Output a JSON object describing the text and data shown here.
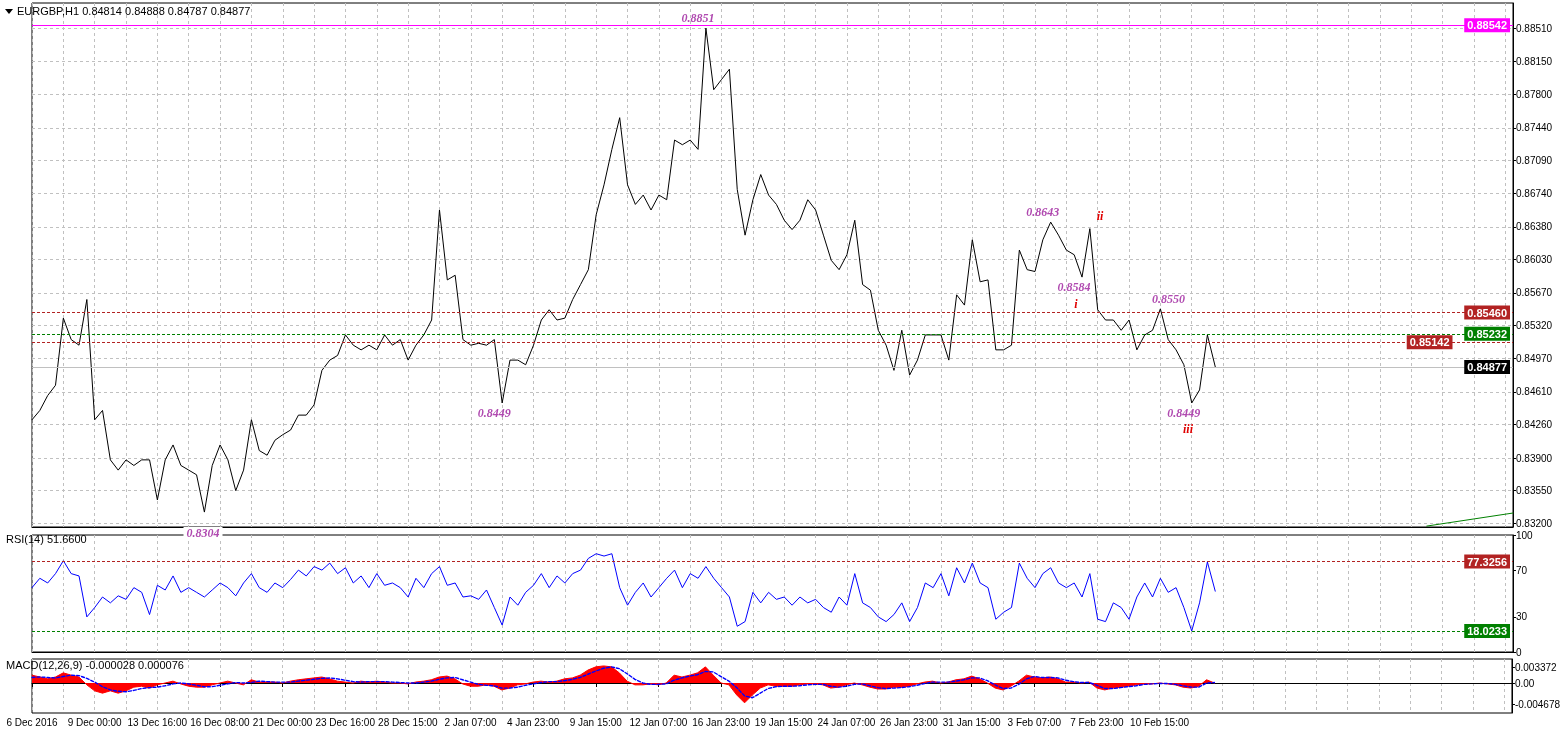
{
  "chart_data": [
    {
      "type": "line",
      "title": "EURGBP,H1 0.84814 0.84888 0.84787 0.84877",
      "categories": [
        "6 Dec 2016",
        null,
        null,
        null,
        null,
        null,
        null,
        null,
        "9 Dec 00:00",
        null,
        null,
        null,
        null,
        null,
        null,
        null,
        "13 Dec 16:00",
        null,
        null,
        null,
        null,
        null,
        null,
        null,
        "16 Dec 08:00",
        null,
        null,
        null,
        null,
        null,
        null,
        null,
        "21 Dec 00:00",
        null,
        null,
        null,
        null,
        null,
        null,
        null,
        "23 Dec 16:00",
        null,
        null,
        null,
        null,
        null,
        null,
        null,
        "28 Dec 15:00",
        null,
        null,
        null,
        null,
        null,
        null,
        null,
        "2 Jan 07:00",
        null,
        null,
        null,
        null,
        null,
        null,
        null,
        "4 Jan 23:00",
        null,
        null,
        null,
        null,
        null,
        null,
        null,
        "9 Jan 15:00",
        null,
        null,
        null,
        null,
        null,
        null,
        null,
        "12 Jan 07:00",
        null,
        null,
        null,
        null,
        null,
        null,
        null,
        "16 Jan 23:00",
        null,
        null,
        null,
        null,
        null,
        null,
        null,
        "19 Jan 15:00",
        null,
        null,
        null,
        null,
        null,
        null,
        null,
        "24 Jan 07:00",
        null,
        null,
        null,
        null,
        null,
        null,
        null,
        "26 Jan 23:00",
        null,
        null,
        null,
        null,
        null,
        null,
        null,
        "31 Jan 15:00",
        null,
        null,
        null,
        null,
        null,
        null,
        null,
        "3 Feb 07:00",
        null,
        null,
        null,
        null,
        null,
        null,
        null,
        "7 Feb 23:00",
        null,
        null,
        null,
        null,
        null,
        null,
        null,
        "10 Feb 15:00",
        null,
        null,
        null,
        null,
        null,
        null,
        null,
        null,
        null,
        null,
        null,
        null,
        null,
        null,
        null,
        null,
        null,
        null,
        null,
        null,
        null,
        null,
        null,
        null,
        null,
        null,
        null,
        null,
        null,
        null,
        null,
        null,
        null,
        null,
        null,
        null,
        null,
        null,
        null,
        null,
        null,
        null,
        null,
        null,
        null
      ],
      "series": [
        {
          "color": "#000000",
          "values": [
            0.8431,
            0.8441,
            0.8457,
            0.8468,
            0.854,
            0.8517,
            0.8511,
            0.856,
            0.8431,
            0.8441,
            0.8388,
            0.8377,
            0.8388,
            0.8382,
            0.8388,
            0.8388,
            0.8345,
            0.8388,
            0.8404,
            0.8382,
            0.8377,
            0.8372,
            0.8332,
            0.8382,
            0.8404,
            0.8388,
            0.8355,
            0.8377,
            0.8431,
            0.8398,
            0.8393,
            0.8409,
            0.8415,
            0.842,
            0.8436,
            0.8436,
            0.8447,
            0.8484,
            0.8495,
            0.85,
            0.8522,
            0.8511,
            0.8506,
            0.8511,
            0.8506,
            0.8522,
            0.8511,
            0.8517,
            0.8495,
            0.8511,
            0.8522,
            0.8538,
            0.8656,
            0.8581,
            0.8586,
            0.8517,
            0.8511,
            0.8513,
            0.8511,
            0.8517,
            0.8449,
            0.8495,
            0.8495,
            0.849,
            0.8511,
            0.8538,
            0.8549,
            0.8538,
            0.854,
            0.856,
            0.8576,
            0.8592,
            0.8651,
            0.8683,
            0.8721,
            0.8755,
            0.8683,
            0.8662,
            0.8672,
            0.8656,
            0.8672,
            0.8667,
            0.8731,
            0.8726,
            0.8731,
            0.8721,
            0.8851,
            0.8785,
            0.8796,
            0.8807,
            0.8678,
            0.8629,
            0.8667,
            0.8694,
            0.8672,
            0.8662,
            0.8645,
            0.8635,
            0.8645,
            0.8667,
            0.8656,
            0.8629,
            0.8602,
            0.8592,
            0.8608,
            0.8645,
            0.8576,
            0.857,
            0.8527,
            0.8511,
            0.8484,
            0.8527,
            0.8479,
            0.8495,
            0.8522,
            0.8522,
            0.8522,
            0.8495,
            0.8565,
            0.8554,
            0.8624,
            0.8579,
            0.8581,
            0.8506,
            0.8506,
            0.8511,
            0.8613,
            0.8592,
            0.859,
            0.8624,
            0.8643,
            0.8629,
            0.8613,
            0.8608,
            0.8584,
            0.8636,
            0.8549,
            0.8538,
            0.8538,
            0.8527,
            0.8538,
            0.8506,
            0.8522,
            0.8527,
            0.855,
            0.8517,
            0.8506,
            0.849,
            0.8449,
            0.8463,
            0.8522,
            0.8488,
            null,
            null,
            null,
            null,
            null,
            null,
            null,
            null,
            null,
            null,
            null,
            null,
            null,
            null,
            null,
            null,
            null,
            null,
            null,
            null,
            null,
            null,
            null,
            null,
            null,
            null,
            null,
            null,
            null,
            null,
            null,
            null,
            null,
            null,
            null,
            null,
            null,
            null
          ],
          "value_labels": [
            null,
            null,
            null,
            null,
            null,
            null,
            null,
            null,
            null,
            null,
            null,
            null,
            null,
            null,
            null,
            null,
            null,
            null,
            null,
            null,
            null,
            null,
            null,
            null,
            null,
            null,
            null,
            null,
            null,
            null,
            null,
            null,
            null,
            null,
            null,
            null,
            null,
            null,
            null,
            null,
            null,
            null,
            null,
            null,
            null,
            null,
            null,
            null,
            null,
            null,
            null,
            null,
            null,
            null,
            null,
            null,
            null,
            null,
            null,
            null,
            "0.8449",
            null,
            null,
            null,
            null,
            null,
            null,
            null,
            null,
            null,
            null,
            null,
            null,
            null,
            null,
            null,
            null,
            null,
            null,
            null,
            null,
            null,
            null,
            null,
            null,
            null,
            "0.8851",
            null,
            null,
            null,
            null,
            null,
            null,
            null,
            null,
            null,
            null,
            null,
            null,
            null,
            null,
            null,
            null,
            null,
            null,
            null,
            null,
            null,
            null,
            null,
            null,
            null,
            null,
            null,
            null,
            null,
            null,
            null,
            null,
            null,
            null,
            null,
            null,
            null,
            null,
            null,
            null,
            null,
            null,
            null,
            "0.8643",
            null,
            null,
            null,
            "0.8584",
            null,
            null,
            null,
            null,
            null,
            null,
            null,
            null,
            null,
            "0.8550",
            null,
            null,
            null,
            "0.8449",
            null,
            null,
            null,
            null,
            null,
            null,
            null,
            null,
            null,
            null,
            null,
            null,
            null,
            null,
            null,
            null,
            null,
            null,
            null,
            null,
            null,
            null,
            null,
            null,
            null,
            null,
            null,
            null,
            null,
            null,
            null,
            null,
            null,
            null,
            null,
            null,
            null,
            null,
            null,
            null,
            null
          ]
        },
        {
          "color": "#008000",
          "values": [
            null,
            null,
            null,
            null,
            null,
            null,
            null,
            null,
            null,
            null,
            null,
            null,
            null,
            null,
            null,
            null,
            null,
            null,
            null,
            null,
            null,
            null,
            null,
            null,
            null,
            null,
            null,
            null,
            null,
            null,
            null,
            null,
            null,
            null,
            null,
            null,
            null,
            null,
            null,
            null,
            null,
            null,
            null,
            null,
            null,
            null,
            null,
            null,
            null,
            null,
            null,
            null,
            null,
            null,
            null,
            null,
            null,
            null,
            null,
            null,
            null,
            null,
            null,
            null,
            null,
            null,
            null,
            null,
            null,
            null,
            null,
            null,
            null,
            null,
            null,
            null,
            null,
            null,
            null,
            null,
            null,
            null,
            null,
            null,
            null,
            null,
            null,
            null,
            null,
            null,
            null,
            null,
            null,
            null,
            null,
            null,
            null,
            null,
            null,
            null,
            null,
            null,
            null,
            null,
            null,
            null,
            null,
            null,
            null,
            null,
            null,
            null,
            null,
            null,
            null,
            null,
            null,
            null,
            null,
            null,
            null,
            null,
            null,
            null,
            null,
            null,
            null,
            null,
            null,
            null,
            null,
            null,
            null,
            null,
            null,
            null,
            null,
            null,
            null,
            null,
            null,
            null,
            null,
            null,
            null,
            null,
            null,
            null,
            null,
            null,
            null,
            null,
            null,
            null,
            null,
            null,
            null,
            null,
            null,
            null,
            null,
            null,
            null,
            null,
            null,
            null,
            null,
            null,
            null,
            null,
            null,
            null,
            null,
            null,
            null,
            null,
            null,
            null,
            0.8317,
            null,
            null,
            null,
            null,
            null,
            null,
            null,
            null,
            null,
            null,
            0.8331
          ]
        }
      ],
      "ylim": [
        0.8316,
        0.8878
      ],
      "yticks": [
        {
          "value": 0.832,
          "label": "0.83200"
        },
        {
          "value": 0.8355,
          "label": "0.83550"
        },
        {
          "value": 0.839,
          "label": "0.83900"
        },
        {
          "value": 0.8426,
          "label": "0.84260"
        },
        {
          "value": 0.8461,
          "label": "0.84610"
        },
        {
          "value": 0.8497,
          "label": "0.84970"
        },
        {
          "value": 0.8532,
          "label": "0.85320"
        },
        {
          "value": 0.8567,
          "label": "0.85670"
        },
        {
          "value": 0.8603,
          "label": "0.86030"
        },
        {
          "value": 0.8638,
          "label": "0.86380"
        },
        {
          "value": 0.8674,
          "label": "0.86740"
        },
        {
          "value": 0.8709,
          "label": "0.87090"
        },
        {
          "value": 0.8744,
          "label": "0.87440"
        },
        {
          "value": 0.878,
          "label": "0.87800"
        },
        {
          "value": 0.8815,
          "label": "0.88150"
        },
        {
          "value": 0.8851,
          "label": "0.88510"
        }
      ],
      "grid": true,
      "tick_labels": "y",
      "ref_lines": [
        {
          "axis": "y",
          "value": 0.88542,
          "label": "0.88542",
          "color": "#ff00ff",
          "line_style": "solid"
        },
        {
          "axis": "y",
          "value": 0.8546,
          "label": "0.85460",
          "color": "#b22222",
          "line_style": "dashed"
        },
        {
          "axis": "y",
          "value": 0.85232,
          "label": "0.85232",
          "color": "#008000",
          "line_style": "dashed"
        },
        {
          "axis": "y",
          "value": 0.85142,
          "label": "0.85142",
          "color": "#b22222",
          "line_style": "dashed"
        },
        {
          "axis": "y",
          "value": 0.84877,
          "label": "0.84877",
          "color": "#c0c0c0",
          "line_style": "solid"
        }
      ],
      "annotations": [
        "0.8304",
        "i",
        "ii",
        "iii"
      ]
    },
    {
      "type": "line",
      "title": "RSI(14) 51.6600",
      "categories": [
        "6 Dec 2016",
        null,
        null,
        null,
        null,
        null,
        null,
        null,
        "9 Dec 00:00",
        null,
        null,
        null,
        null,
        null,
        null,
        null,
        "13 Dec 16:00",
        null,
        null,
        null,
        null,
        null,
        null,
        null,
        "16 Dec 08:00",
        null,
        null,
        null,
        null,
        null,
        null,
        null,
        "21 Dec 00:00",
        null,
        null,
        null,
        null,
        null,
        null,
        null,
        "23 Dec 16:00",
        null,
        null,
        null,
        null,
        null,
        null,
        null,
        "28 Dec 15:00",
        null,
        null,
        null,
        null,
        null,
        null,
        null,
        "2 Jan 07:00",
        null,
        null,
        null,
        null,
        null,
        null,
        null,
        "4 Jan 23:00",
        null,
        null,
        null,
        null,
        null,
        null,
        null,
        "9 Jan 15:00",
        null,
        null,
        null,
        null,
        null,
        null,
        null,
        "12 Jan 07:00",
        null,
        null,
        null,
        null,
        null,
        null,
        null,
        "16 Jan 23:00",
        null,
        null,
        null,
        null,
        null,
        null,
        null,
        "19 Jan 15:00",
        null,
        null,
        null,
        null,
        null,
        null,
        null,
        "24 Jan 07:00",
        null,
        null,
        null,
        null,
        null,
        null,
        null,
        "26 Jan 23:00",
        null,
        null,
        null,
        null,
        null,
        null,
        null,
        "31 Jan 15:00",
        null,
        null,
        null,
        null,
        null,
        null,
        null,
        "3 Feb 07:00",
        null,
        null,
        null,
        null,
        null,
        null,
        null,
        "7 Feb 23:00",
        null,
        null,
        null,
        null,
        null,
        null,
        null,
        "10 Feb 15:00",
        null,
        null,
        null,
        null,
        null,
        null,
        null,
        null,
        null,
        null,
        null,
        null,
        null,
        null,
        null,
        null,
        null,
        null,
        null,
        null,
        null,
        null,
        null,
        null,
        null,
        null,
        null,
        null,
        null,
        null,
        null,
        null,
        null,
        null,
        null,
        null,
        null,
        null,
        null,
        null,
        null,
        null,
        null,
        null,
        null
      ],
      "series": [
        {
          "color": "#0000ff",
          "values": [
            55,
            63,
            59,
            67,
            78,
            67,
            65,
            30,
            38,
            47,
            42,
            48,
            45,
            55,
            51,
            32,
            57,
            53,
            65,
            51,
            55,
            51,
            47,
            53,
            59,
            55,
            48,
            59,
            67,
            55,
            51,
            59,
            55,
            62,
            70,
            65,
            73,
            70,
            76,
            67,
            72,
            59,
            65,
            55,
            67,
            57,
            59,
            55,
            47,
            63,
            55,
            67,
            73,
            57,
            59,
            47,
            48,
            45,
            53,
            38,
            23,
            47,
            40,
            51,
            57,
            67,
            55,
            65,
            59,
            67,
            70,
            80,
            84,
            82,
            84,
            55,
            40,
            51,
            59,
            47,
            55,
            63,
            70,
            55,
            67,
            63,
            73,
            63,
            55,
            47,
            22,
            26,
            51,
            42,
            51,
            45,
            47,
            40,
            47,
            42,
            45,
            38,
            34,
            47,
            40,
            67,
            42,
            38,
            30,
            26,
            32,
            42,
            26,
            38,
            59,
            55,
            67,
            48,
            72,
            59,
            76,
            59,
            55,
            28,
            34,
            38,
            76,
            63,
            55,
            67,
            72,
            59,
            55,
            59,
            47,
            67,
            28,
            26,
            42,
            38,
            28,
            47,
            59,
            47,
            63,
            51,
            55,
            38,
            18,
            42,
            77,
            52,
            null,
            null,
            null,
            null,
            null,
            null,
            null,
            null,
            null,
            null,
            null,
            null,
            null,
            null,
            null,
            null,
            null,
            null,
            null,
            null,
            null,
            null,
            null,
            null,
            null,
            null,
            null,
            null,
            null,
            null,
            null,
            null,
            null,
            null,
            null,
            null,
            null,
            null
          ]
        }
      ],
      "ylim": [
        0,
        100
      ],
      "yticks": [
        0,
        30,
        70,
        100
      ],
      "grid": "x",
      "tick_labels": "y",
      "ref_lines": [
        {
          "axis": "y",
          "value": 77.3256,
          "label": "77.3256",
          "color": "#b22222",
          "line_style": "dashed"
        },
        {
          "axis": "y",
          "value": 18.0233,
          "label": "18.0233",
          "color": "#008000",
          "line_style": "dashed"
        }
      ]
    },
    {
      "type": "area",
      "title": "MACD(12,26,9) -0.000028 0.000076",
      "categories": [
        "6 Dec 2016",
        null,
        null,
        null,
        null,
        null,
        null,
        null,
        "9 Dec 00:00",
        null,
        null,
        null,
        null,
        null,
        null,
        null,
        "13 Dec 16:00",
        null,
        null,
        null,
        null,
        null,
        null,
        null,
        "16 Dec 08:00",
        null,
        null,
        null,
        null,
        null,
        null,
        null,
        "21 Dec 00:00",
        null,
        null,
        null,
        null,
        null,
        null,
        null,
        "23 Dec 16:00",
        null,
        null,
        null,
        null,
        null,
        null,
        null,
        "28 Dec 15:00",
        null,
        null,
        null,
        null,
        null,
        null,
        null,
        "2 Jan 07:00",
        null,
        null,
        null,
        null,
        null,
        null,
        null,
        "4 Jan 23:00",
        null,
        null,
        null,
        null,
        null,
        null,
        null,
        "9 Jan 15:00",
        null,
        null,
        null,
        null,
        null,
        null,
        null,
        "12 Jan 07:00",
        null,
        null,
        null,
        null,
        null,
        null,
        null,
        "16 Jan 23:00",
        null,
        null,
        null,
        null,
        null,
        null,
        null,
        "19 Jan 15:00",
        null,
        null,
        null,
        null,
        null,
        null,
        null,
        "24 Jan 07:00",
        null,
        null,
        null,
        null,
        null,
        null,
        null,
        "26 Jan 23:00",
        null,
        null,
        null,
        null,
        null,
        null,
        null,
        "31 Jan 15:00",
        null,
        null,
        null,
        null,
        null,
        null,
        null,
        "3 Feb 07:00",
        null,
        null,
        null,
        null,
        null,
        null,
        null,
        "7 Feb 23:00",
        null,
        null,
        null,
        null,
        null,
        null,
        null,
        "10 Feb 15:00",
        null,
        null,
        null,
        null,
        null,
        null,
        null,
        null,
        null,
        null,
        null,
        null,
        null,
        null,
        null,
        null,
        null,
        null,
        null,
        null,
        null,
        null,
        null,
        null,
        null,
        null,
        null,
        null,
        null,
        null,
        null,
        null,
        null,
        null,
        null,
        null,
        null,
        null,
        null,
        null,
        null,
        null,
        null,
        null,
        null
      ],
      "series": [
        {
          "color": "#ff0000",
          "values": [
            0.0017,
            0.0013,
            0.0009,
            0.0013,
            0.0022,
            0.0017,
            0.0013,
            -0.0004,
            -0.0017,
            -0.0022,
            -0.0017,
            -0.0022,
            -0.0017,
            -0.0009,
            -0.0007,
            -0.0011,
            -0.0004,
            0,
            0.0004,
            -0.0002,
            -0.0007,
            -0.0009,
            -0.0009,
            -0.0004,
            0,
            0.0004,
            0,
            -0.0004,
            0.0007,
            0.0002,
            0.0002,
            0.0002,
            0,
            0.0004,
            0.0007,
            0.0009,
            0.0011,
            0.0013,
            0.0009,
            0.0004,
            0.0002,
            0,
            0.0004,
            0.0002,
            0.0004,
            0.0002,
            0,
            0,
            -0.0002,
            0.0002,
            0.0004,
            0.0007,
            0.0013,
            0.0015,
            0.0009,
            -0.0002,
            -0.0007,
            -0.0007,
            -0.0004,
            -0.0007,
            -0.0015,
            -0.0011,
            -0.0004,
            -0.0002,
            0.0002,
            0.0004,
            0.0002,
            0.0004,
            0.0009,
            0.0011,
            0.0017,
            0.0028,
            0.0035,
            0.0037,
            0.0035,
            0.0022,
            0.0004,
            -0.0004,
            -0.0004,
            -0.0002,
            -0.0004,
            0,
            0.0017,
            0.0013,
            0.0017,
            0.0022,
            0.0035,
            0.0017,
            0,
            -0.0004,
            -0.0026,
            -0.0043,
            -0.0026,
            -0.0011,
            -0.0004,
            -0.0007,
            -0.0007,
            -0.0007,
            -0.0004,
            -0.0002,
            -0.0002,
            -0.0004,
            -0.0011,
            -0.0009,
            -0.0004,
            0,
            -0.0004,
            -0.0009,
            -0.0013,
            -0.0013,
            -0.0009,
            -0.0009,
            -0.0007,
            -0.0002,
            0.0002,
            0.0004,
            0,
            0.0002,
            0.0007,
            0.0009,
            0.0015,
            0.0009,
            0,
            -0.0011,
            -0.0015,
            -0.0007,
            0.0004,
            0.0017,
            0.0013,
            0.0011,
            0.0013,
            0.0009,
            0.0002,
            0.0002,
            0,
            0.0002,
            -0.0011,
            -0.0015,
            -0.0011,
            -0.0009,
            -0.0007,
            -0.0004,
            -0.0002,
            -0.0002,
            0,
            -0.0002,
            -0.0004,
            -0.0009,
            -0.0011,
            -0.0007,
            0.0007,
            0,
            null,
            null,
            null,
            null,
            null,
            null,
            null,
            null,
            null,
            null,
            null,
            null,
            null,
            null,
            null,
            null,
            null,
            null,
            null,
            null,
            null,
            null,
            null,
            null,
            null,
            null,
            null,
            null,
            null,
            null,
            null,
            null,
            null,
            null,
            null,
            null,
            null,
            null
          ]
        },
        {
          "type": "line",
          "color": "#0000ff",
          "line_style": "dashed",
          "values": [
            0.0012,
            0.0013,
            0.0012,
            0.0011,
            0.0014,
            0.0017,
            0.0016,
            0.001,
            0.0002,
            -0.0008,
            -0.0015,
            -0.0018,
            -0.0019,
            -0.0016,
            -0.0012,
            -0.001,
            -0.0009,
            -0.0006,
            -0.0002,
            0,
            -0.0002,
            -0.0005,
            -0.0008,
            -0.0008,
            -0.0005,
            -0.0002,
            0.0001,
            0,
            0.0001,
            0.0004,
            0.0003,
            0.0002,
            0.0002,
            0.0002,
            0.0004,
            0.0006,
            0.0008,
            0.001,
            0.0011,
            0.0009,
            0.0006,
            0.0003,
            0.0002,
            0.0003,
            0.0003,
            0.0003,
            0.0002,
            0.0001,
            0,
            0,
            0.0002,
            0.0004,
            0.0008,
            0.0011,
            0.0012,
            0.0007,
            0.0002,
            -0.0003,
            -0.0005,
            -0.0006,
            -0.0011,
            -0.0011,
            -0.0009,
            -0.0005,
            -0.0002,
            0.0001,
            0.0003,
            0.0003,
            0.0005,
            0.0008,
            0.0012,
            0.0019,
            0.0026,
            0.0032,
            0.0035,
            0.0031,
            0.002,
            0.0008,
            0,
            -0.0003,
            -0.0003,
            -0.0002,
            0.0006,
            0.0011,
            0.0015,
            0.0018,
            0.0025,
            0.0024,
            0.0014,
            0.0004,
            -0.001,
            -0.0028,
            -0.0032,
            -0.0022,
            -0.0012,
            -0.0008,
            -0.0007,
            -0.0007,
            -0.0006,
            -0.0004,
            -0.0003,
            -0.0003,
            -0.0007,
            -0.0009,
            -0.0007,
            -0.0003,
            -0.0002,
            -0.0006,
            -0.001,
            -0.0012,
            -0.0011,
            -0.001,
            -0.0008,
            -0.0005,
            -0.0001,
            0.0002,
            0.0002,
            0.0002,
            0.0004,
            0.0007,
            0.0011,
            0.0011,
            0.0005,
            -0.0004,
            -0.0012,
            -0.0011,
            -0.0003,
            0.0009,
            0.0014,
            0.0012,
            0.0012,
            0.0011,
            0.0006,
            0.0003,
            0.0001,
            0.0001,
            -0.0005,
            -0.0012,
            -0.0012,
            -0.001,
            -0.0008,
            -0.0006,
            -0.0003,
            -0.0002,
            -0.0001,
            -0.0001,
            -0.0003,
            -0.0006,
            -0.0009,
            -0.0009,
            0,
            0.0001,
            null,
            null,
            null,
            null,
            null,
            null,
            null,
            null,
            null,
            null,
            null,
            null,
            null,
            null,
            null,
            null,
            null,
            null,
            null,
            null,
            null,
            null,
            null,
            null,
            null,
            null,
            null,
            null,
            null,
            null,
            null,
            null,
            null,
            null,
            null,
            null,
            null,
            null
          ]
        }
      ],
      "ylim": [
        -0.0065,
        0.0052
      ],
      "yticks": [
        -0.004678,
        {
          "value": 0,
          "label": "0.00"
        },
        0.003372
      ],
      "grid": "x"
    }
  ]
}
